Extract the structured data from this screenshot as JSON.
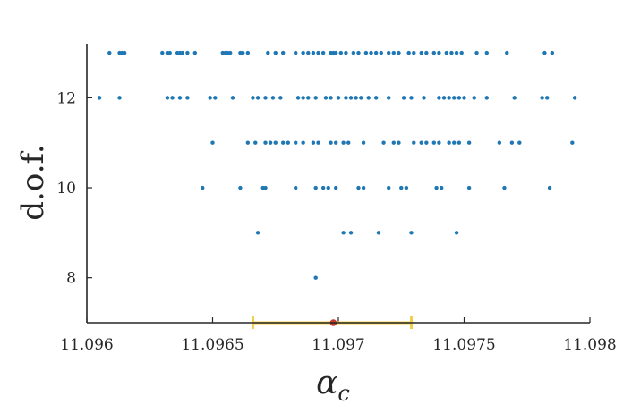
{
  "chart_data": {
    "type": "scatter",
    "title": "",
    "xlabel": "α",
    "xlabel_sub": "c",
    "ylabel": "d.o.f.",
    "xlim": [
      11.096,
      11.098
    ],
    "ylim": [
      7,
      13.2
    ],
    "xticks": [
      11.096,
      11.0965,
      11.097,
      11.0975,
      11.098
    ],
    "xtick_labels": [
      "11.096",
      "11.0965",
      "11.097",
      "11.0975",
      "11.098"
    ],
    "yticks": [
      8,
      10,
      12
    ],
    "ytick_labels": [
      "8",
      "10",
      "12"
    ],
    "grid": false,
    "colors": {
      "points": "#1f77b4",
      "estimate": "#c0392b",
      "interval": "#f2d04a",
      "axis": "#262626"
    },
    "series": [
      {
        "points": [
          [
            11.09609,
            13
          ],
          [
            11.09613,
            13
          ],
          [
            11.09614,
            13
          ],
          [
            11.09615,
            13
          ],
          [
            11.0963,
            13
          ],
          [
            11.09632,
            13
          ],
          [
            11.09633,
            13
          ],
          [
            11.09636,
            13
          ],
          [
            11.09637,
            13
          ],
          [
            11.09638,
            13
          ],
          [
            11.0964,
            13
          ],
          [
            11.09643,
            13
          ],
          [
            11.09654,
            13
          ],
          [
            11.09655,
            13
          ],
          [
            11.09656,
            13
          ],
          [
            11.09657,
            13
          ],
          [
            11.09661,
            13
          ],
          [
            11.09662,
            13
          ],
          [
            11.09664,
            13
          ],
          [
            11.09672,
            13
          ],
          [
            11.09675,
            13
          ],
          [
            11.09678,
            13
          ],
          [
            11.09683,
            13
          ],
          [
            11.09686,
            13
          ],
          [
            11.09688,
            13
          ],
          [
            11.0969,
            13
          ],
          [
            11.09692,
            13
          ],
          [
            11.09694,
            13
          ],
          [
            11.09697,
            13
          ],
          [
            11.09698,
            13
          ],
          [
            11.09699,
            13
          ],
          [
            11.09701,
            13
          ],
          [
            11.09703,
            13
          ],
          [
            11.09706,
            13
          ],
          [
            11.09708,
            13
          ],
          [
            11.09711,
            13
          ],
          [
            11.09713,
            13
          ],
          [
            11.09715,
            13
          ],
          [
            11.09717,
            13
          ],
          [
            11.0972,
            13
          ],
          [
            11.09722,
            13
          ],
          [
            11.09724,
            13
          ],
          [
            11.09728,
            13
          ],
          [
            11.0973,
            13
          ],
          [
            11.09733,
            13
          ],
          [
            11.09735,
            13
          ],
          [
            11.09738,
            13
          ],
          [
            11.0974,
            13
          ],
          [
            11.09743,
            13
          ],
          [
            11.09745,
            13
          ],
          [
            11.09747,
            13
          ],
          [
            11.09749,
            13
          ],
          [
            11.09755,
            13
          ],
          [
            11.09759,
            13
          ],
          [
            11.09767,
            13
          ],
          [
            11.09782,
            13
          ],
          [
            11.09785,
            13
          ],
          [
            11.09605,
            12
          ],
          [
            11.09613,
            12
          ],
          [
            11.09632,
            12
          ],
          [
            11.09634,
            12
          ],
          [
            11.09637,
            12
          ],
          [
            11.0964,
            12
          ],
          [
            11.09649,
            12
          ],
          [
            11.09651,
            12
          ],
          [
            11.09658,
            12
          ],
          [
            11.09666,
            12
          ],
          [
            11.09668,
            12
          ],
          [
            11.09671,
            12
          ],
          [
            11.09674,
            12
          ],
          [
            11.09677,
            12
          ],
          [
            11.09684,
            12
          ],
          [
            11.09686,
            12
          ],
          [
            11.09688,
            12
          ],
          [
            11.09691,
            12
          ],
          [
            11.09695,
            12
          ],
          [
            11.09697,
            12
          ],
          [
            11.097,
            12
          ],
          [
            11.09703,
            12
          ],
          [
            11.09705,
            12
          ],
          [
            11.09707,
            12
          ],
          [
            11.09709,
            12
          ],
          [
            11.09712,
            12
          ],
          [
            11.09715,
            12
          ],
          [
            11.0972,
            12
          ],
          [
            11.09726,
            12
          ],
          [
            11.09729,
            12
          ],
          [
            11.09734,
            12
          ],
          [
            11.0974,
            12
          ],
          [
            11.09742,
            12
          ],
          [
            11.09744,
            12
          ],
          [
            11.09746,
            12
          ],
          [
            11.09748,
            12
          ],
          [
            11.0975,
            12
          ],
          [
            11.09754,
            12
          ],
          [
            11.09759,
            12
          ],
          [
            11.0977,
            12
          ],
          [
            11.09781,
            12
          ],
          [
            11.09783,
            12
          ],
          [
            11.09794,
            12
          ],
          [
            11.0965,
            11
          ],
          [
            11.09664,
            11
          ],
          [
            11.09667,
            11
          ],
          [
            11.09671,
            11
          ],
          [
            11.09673,
            11
          ],
          [
            11.09675,
            11
          ],
          [
            11.09678,
            11
          ],
          [
            11.0968,
            11
          ],
          [
            11.09683,
            11
          ],
          [
            11.09686,
            11
          ],
          [
            11.0969,
            11
          ],
          [
            11.09692,
            11
          ],
          [
            11.09697,
            11
          ],
          [
            11.09699,
            11
          ],
          [
            11.09702,
            11
          ],
          [
            11.09704,
            11
          ],
          [
            11.0971,
            11
          ],
          [
            11.09718,
            11
          ],
          [
            11.09722,
            11
          ],
          [
            11.09724,
            11
          ],
          [
            11.0973,
            11
          ],
          [
            11.09733,
            11
          ],
          [
            11.09735,
            11
          ],
          [
            11.09738,
            11
          ],
          [
            11.0974,
            11
          ],
          [
            11.09744,
            11
          ],
          [
            11.09746,
            11
          ],
          [
            11.09748,
            11
          ],
          [
            11.09752,
            11
          ],
          [
            11.09764,
            11
          ],
          [
            11.09769,
            11
          ],
          [
            11.09772,
            11
          ],
          [
            11.09793,
            11
          ],
          [
            11.09646,
            10
          ],
          [
            11.09661,
            10
          ],
          [
            11.0967,
            10
          ],
          [
            11.09671,
            10
          ],
          [
            11.09683,
            10
          ],
          [
            11.09691,
            10
          ],
          [
            11.09694,
            10
          ],
          [
            11.09696,
            10
          ],
          [
            11.09699,
            10
          ],
          [
            11.09708,
            10
          ],
          [
            11.0971,
            10
          ],
          [
            11.0972,
            10
          ],
          [
            11.09725,
            10
          ],
          [
            11.09727,
            10
          ],
          [
            11.09739,
            10
          ],
          [
            11.09741,
            10
          ],
          [
            11.09752,
            10
          ],
          [
            11.09766,
            10
          ],
          [
            11.09784,
            10
          ],
          [
            11.09668,
            9
          ],
          [
            11.09702,
            9
          ],
          [
            11.09705,
            9
          ],
          [
            11.09716,
            9
          ],
          [
            11.09729,
            9
          ],
          [
            11.09747,
            9
          ],
          [
            11.09691,
            8
          ]
        ]
      }
    ],
    "estimate": {
      "x": 11.09698,
      "y": 7
    },
    "interval": {
      "low": 11.09666,
      "high": 11.09729,
      "y": 7
    }
  }
}
